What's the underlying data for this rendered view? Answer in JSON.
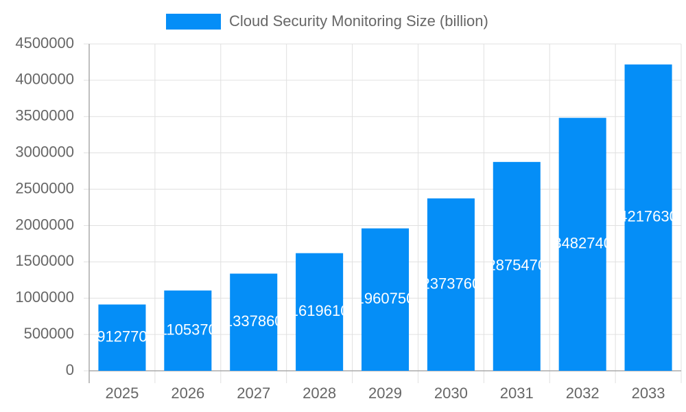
{
  "chart_data": {
    "type": "bar",
    "categories": [
      "2025",
      "2026",
      "2027",
      "2028",
      "2029",
      "2030",
      "2031",
      "2032",
      "2033"
    ],
    "series": [
      {
        "name": "Cloud Security Monitoring Size (billion)",
        "color": "#058ef7",
        "values": [
          912770,
          1105370,
          1337860,
          1619610,
          1960750,
          2373760,
          2875470,
          3482740,
          4217630
        ]
      }
    ],
    "ylim": [
      0,
      4500000
    ],
    "yticks": [
      0,
      500000,
      1000000,
      1500000,
      2000000,
      2500000,
      3000000,
      3500000,
      4000000,
      4500000
    ],
    "grid": true,
    "legend": "top"
  }
}
